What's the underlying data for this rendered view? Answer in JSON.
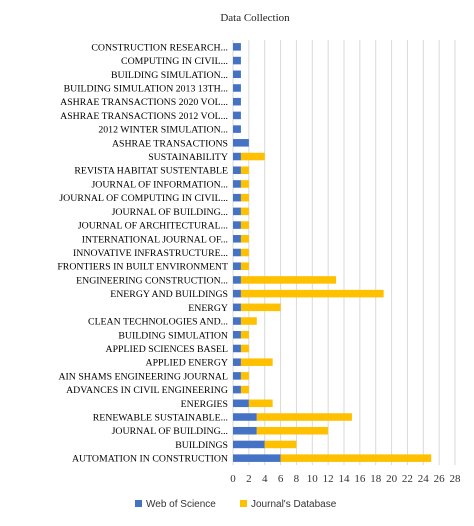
{
  "chart_data": {
    "type": "bar",
    "stacked": true,
    "orientation": "horizontal",
    "title": "Data Collection",
    "xlim": [
      0,
      28
    ],
    "xticks": [
      0,
      2,
      4,
      6,
      8,
      10,
      12,
      14,
      16,
      18,
      20,
      22,
      24,
      26,
      28
    ],
    "grid": true,
    "legend_position": "bottom",
    "categories": [
      "CONSTRUCTION RESEARCH...",
      "COMPUTING IN CIVIL...",
      "BUILDING SIMULATION...",
      "BUILDING SIMULATION 2013 13TH...",
      "ASHRAE TRANSACTIONS 2020 VOL...",
      "ASHRAE TRANSACTIONS 2012 VOL...",
      "2012 WINTER SIMULATION...",
      "ASHRAE TRANSACTIONS",
      "SUSTAINABILITY",
      "REVISTA HABITAT SUSTENTABLE",
      "JOURNAL OF INFORMATION...",
      "JOURNAL OF COMPUTING IN CIVIL...",
      "JOURNAL OF BUILDING...",
      "JOURNAL OF ARCHITECTURAL...",
      "INTERNATIONAL JOURNAL OF...",
      "INNOVATIVE INFRASTRUCTURE...",
      "FRONTIERS IN BUILT ENVIRONMENT",
      "ENGINEERING CONSTRUCTION...",
      "ENERGY AND BUILDINGS",
      "ENERGY",
      "CLEAN TECHNOLOGIES AND...",
      "BUILDING SIMULATION",
      "APPLIED SCIENCES BASEL",
      "APPLIED ENERGY",
      "AIN SHAMS ENGINEERING JOURNAL",
      "ADVANCES IN CIVIL ENGINEERING",
      "ENERGIES",
      "RENEWABLE SUSTAINABLE...",
      "JOURNAL OF BUILDING...",
      "BUILDINGS",
      "AUTOMATION IN CONSTRUCTION"
    ],
    "series": [
      {
        "name": "Web of Science",
        "color": "#4472C4",
        "values": [
          1,
          1,
          1,
          1,
          1,
          1,
          1,
          2,
          1,
          1,
          1,
          1,
          1,
          1,
          1,
          1,
          1,
          1,
          1,
          1,
          1,
          1,
          1,
          1,
          1,
          1,
          2,
          3,
          3,
          4,
          6
        ]
      },
      {
        "name": "Journal's Database",
        "color": "#FFC000",
        "values": [
          0,
          0,
          0,
          0,
          0,
          0,
          0,
          0,
          3,
          1,
          1,
          1,
          1,
          1,
          1,
          1,
          1,
          12,
          18,
          5,
          2,
          1,
          1,
          4,
          1,
          1,
          3,
          12,
          9,
          4,
          19
        ]
      }
    ]
  }
}
